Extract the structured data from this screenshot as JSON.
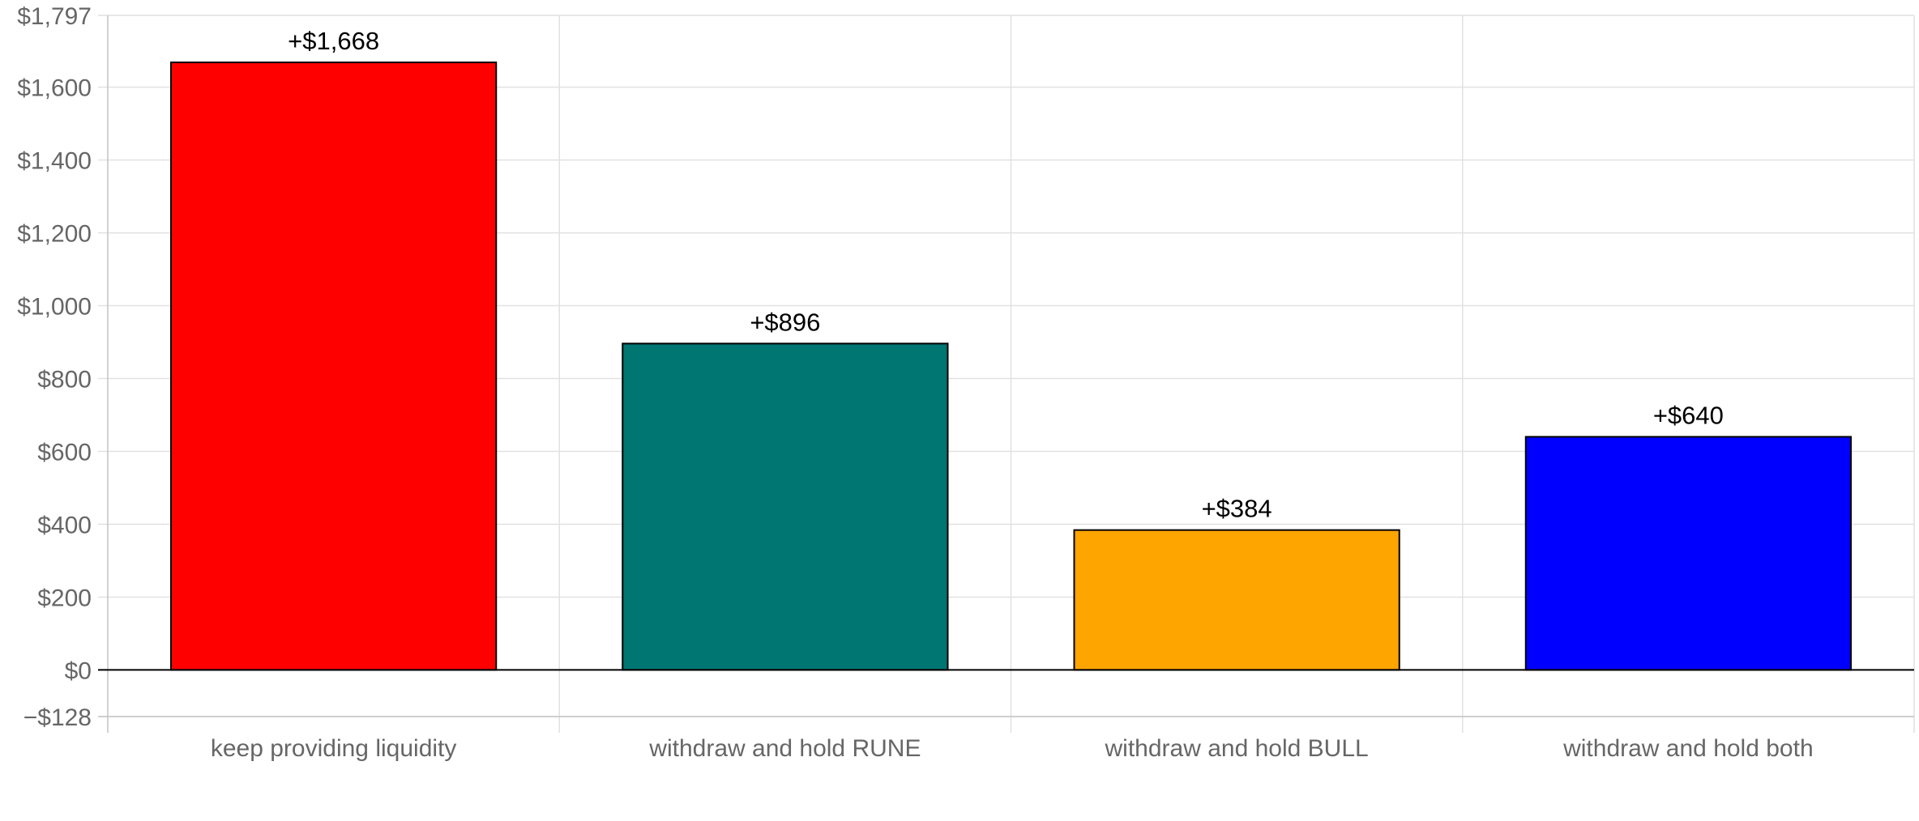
{
  "chart_data": {
    "type": "bar",
    "title": "",
    "xlabel": "",
    "ylabel": "",
    "categories": [
      "keep providing liquidity",
      "withdraw and hold RUNE",
      "withdraw and hold BULL",
      "withdraw and hold both"
    ],
    "values": [
      1668,
      896,
      384,
      640
    ],
    "data_labels": [
      "+$1,668",
      "+$896",
      "+$384",
      "+$640"
    ],
    "colors": [
      "#ff0000",
      "#007673",
      "#ffa500",
      "#0000ff"
    ],
    "ylim": [
      -128,
      1797
    ],
    "yticks": [
      -128,
      0,
      200,
      400,
      600,
      800,
      1000,
      1200,
      1400,
      1600,
      1797
    ],
    "ytick_labels": [
      "−$128",
      "$0",
      "$200",
      "$400",
      "$600",
      "$800",
      "$1,000",
      "$1,200",
      "$1,400",
      "$1,600",
      "$1,797"
    ],
    "grid": true,
    "legend": "none"
  }
}
